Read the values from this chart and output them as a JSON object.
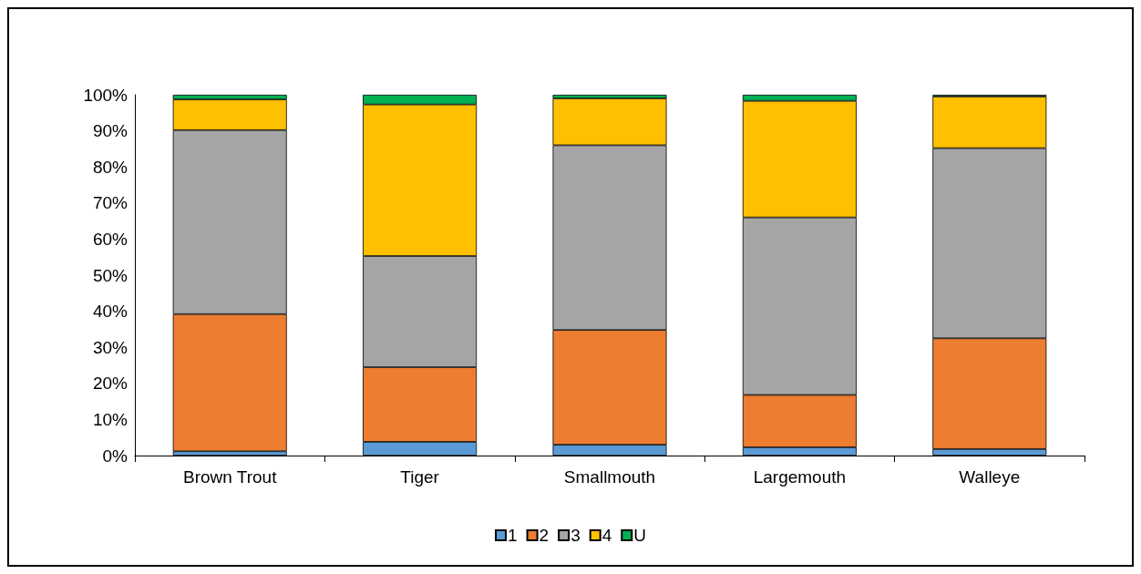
{
  "chart_data": {
    "type": "bar",
    "stacked": true,
    "categories": [
      "Brown Trout",
      "Tiger",
      "Smallmouth",
      "Largemouth",
      "Walleye"
    ],
    "series": [
      {
        "name": "1",
        "color": "#5b9bd5",
        "values": [
          1.2,
          3.8,
          3.0,
          2.3,
          1.8
        ]
      },
      {
        "name": "2",
        "color": "#ed7d31",
        "values": [
          38.0,
          20.7,
          31.8,
          14.5,
          30.7
        ]
      },
      {
        "name": "3",
        "color": "#a5a5a5",
        "values": [
          51.0,
          30.8,
          51.2,
          49.2,
          52.7
        ]
      },
      {
        "name": "4",
        "color": "#ffc000",
        "values": [
          8.5,
          42.0,
          13.0,
          32.3,
          14.3
        ]
      },
      {
        "name": "U",
        "color": "#00b050",
        "values": [
          1.3,
          2.7,
          1.0,
          1.7,
          0.5
        ]
      }
    ],
    "ylim": [
      0,
      100
    ],
    "yticks": [
      {
        "value": 0,
        "label": "0%"
      },
      {
        "value": 10,
        "label": "10%"
      },
      {
        "value": 20,
        "label": "20%"
      },
      {
        "value": 30,
        "label": "30%"
      },
      {
        "value": 40,
        "label": "40%"
      },
      {
        "value": 50,
        "label": "50%"
      },
      {
        "value": 60,
        "label": "60%"
      },
      {
        "value": 70,
        "label": "70%"
      },
      {
        "value": 80,
        "label": "80%"
      },
      {
        "value": 90,
        "label": "90%"
      },
      {
        "value": 100,
        "label": "100%"
      }
    ],
    "grid": false,
    "legend": "bottom"
  }
}
